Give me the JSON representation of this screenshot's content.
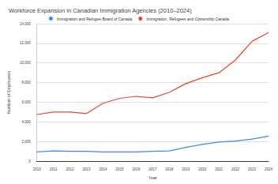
{
  "chart_data": {
    "type": "line",
    "title": "Workforce Expansion in Canadian Immigration Agencies (2010–2024)",
    "x_label": "Year",
    "y_label": "Number of Employees",
    "categories": [
      "2010",
      "2011",
      "2012",
      "2013",
      "2014",
      "2015",
      "2016",
      "2017",
      "2018",
      "2019",
      "2020",
      "2021",
      "2022",
      "2023",
      "2024"
    ],
    "series": [
      {
        "name": "Immigration and Refugee Board of Canada",
        "color": "#4285f4",
        "marker": "none",
        "values": [
          950,
          1050,
          1000,
          1000,
          950,
          950,
          950,
          1000,
          1050,
          1400,
          1700,
          1950,
          2050,
          2250,
          2550
        ]
      },
      {
        "name": "Immigration, Refugees and Citizenship Canada",
        "color": "#ea4335",
        "marker": "none",
        "values": [
          4750,
          5000,
          5000,
          4850,
          5900,
          6400,
          6600,
          6450,
          7000,
          7900,
          8500,
          9000,
          10300,
          12200,
          13100
        ]
      }
    ],
    "ylim": [
      0,
      14000
    ],
    "yticks": [
      0,
      {
        "value": 2000,
        "label": "2,000"
      },
      {
        "value": 4000,
        "label": "4,000"
      },
      {
        "value": 6000,
        "label": "6,000"
      },
      {
        "value": 8000,
        "label": "8,000"
      },
      {
        "value": 10000,
        "label": "10,000"
      },
      {
        "value": 12000,
        "label": "12,000"
      },
      {
        "value": 14000,
        "label": "14,000"
      }
    ],
    "grid": true,
    "legend": "top"
  }
}
